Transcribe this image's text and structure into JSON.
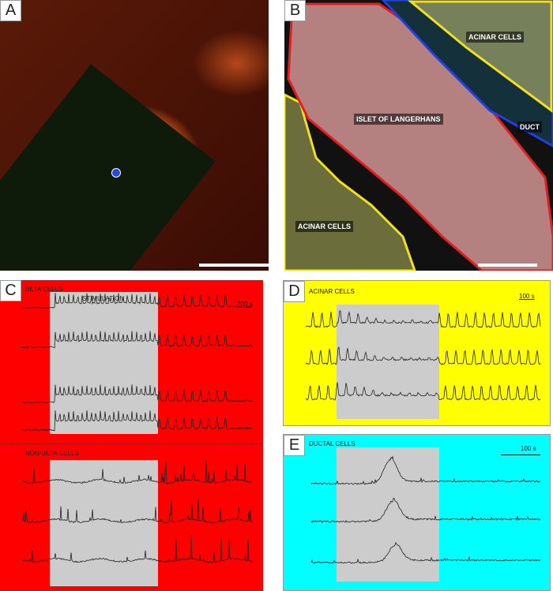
{
  "panel_a": {
    "letter": "A"
  },
  "panel_b": {
    "letter": "B",
    "labels": {
      "acinar_top": "ACINAR CELLS",
      "islet": "ISLET OF LANGERHANS",
      "duct": "DUCT",
      "acinar_bottom": "ACINAR CELLS"
    },
    "region_colors": {
      "islet": "#e02020",
      "acinar": "#f0e020",
      "duct": "#2040e0"
    }
  },
  "panel_c": {
    "letter": "C",
    "background": "#ff0000",
    "beta_title": "BETA CELLS",
    "stimulation": "STIMULATION",
    "scale": "200 s",
    "nonbeta_title": "NON-BETA CELLS"
  },
  "panel_d": {
    "letter": "D",
    "background": "#ffff00",
    "title": "ACINAR CELLS",
    "scale": "100 s"
  },
  "panel_e": {
    "letter": "E",
    "background": "#00ffff",
    "title": "DUCTAL CELLS",
    "scale": "100 s"
  }
}
